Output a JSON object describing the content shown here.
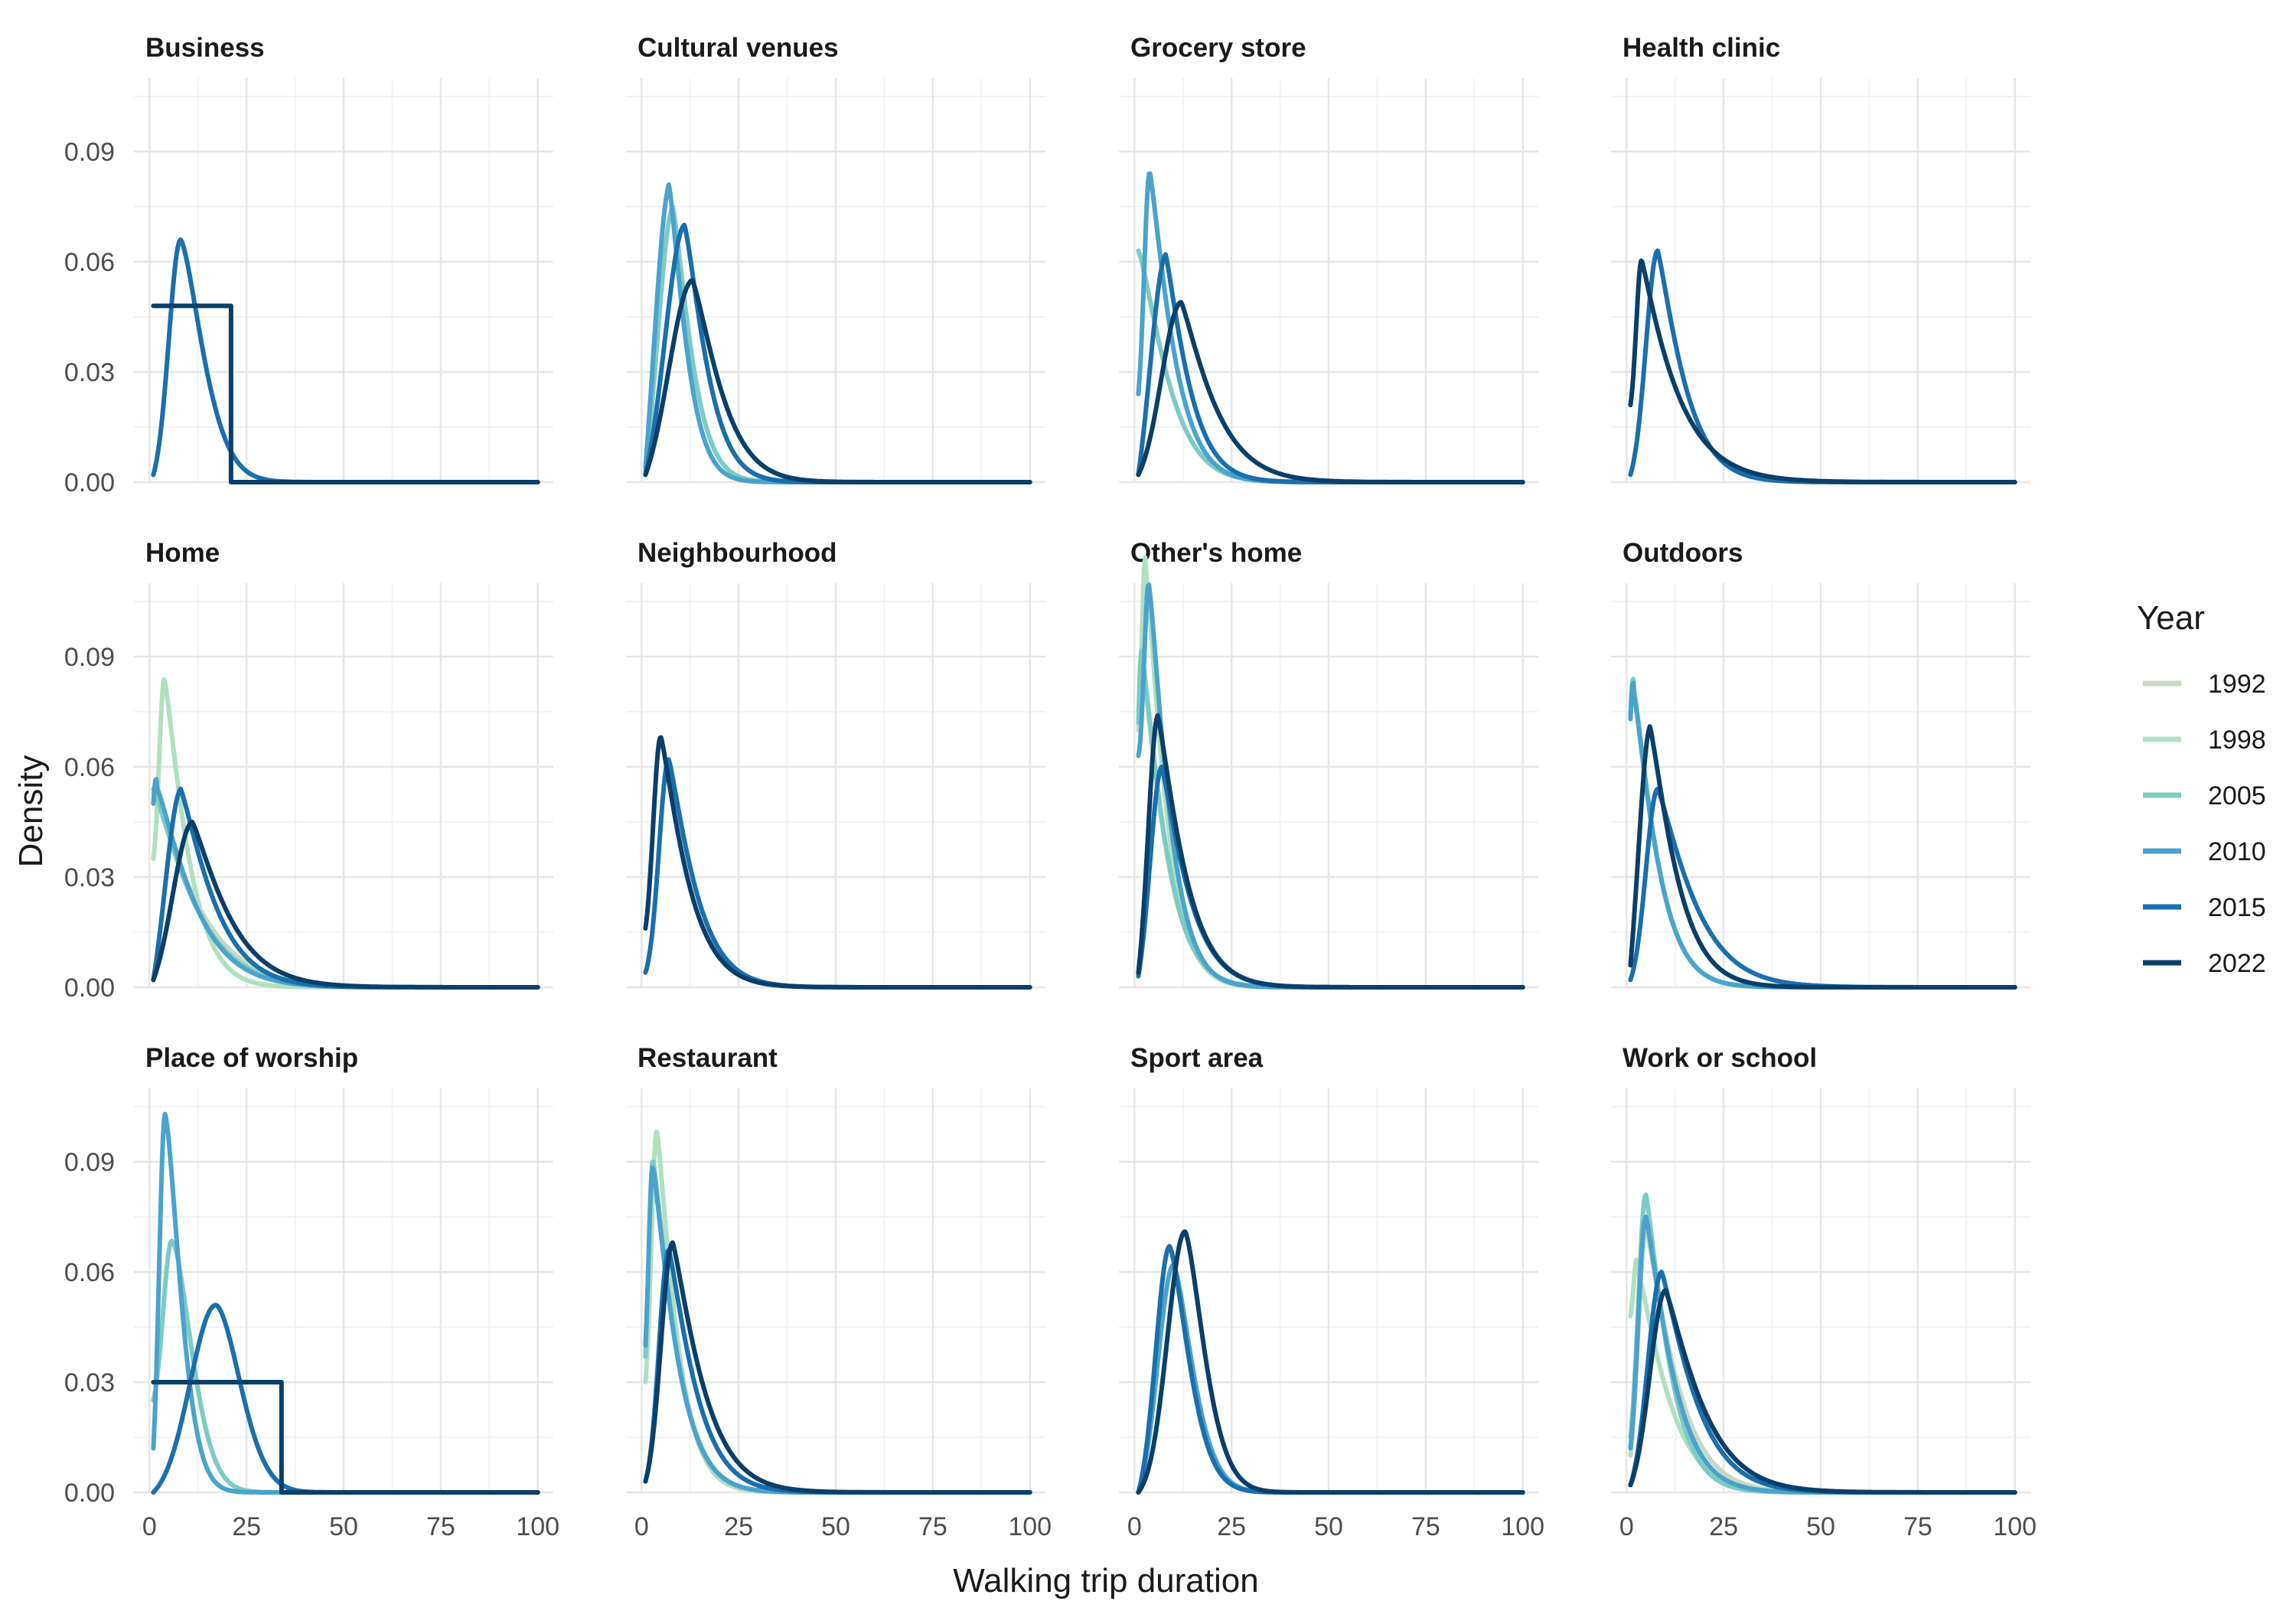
{
  "chart_data": {
    "type": "line",
    "xlabel": "Walking trip duration",
    "ylabel": "Density",
    "xlim": [
      0,
      100
    ],
    "ylim": [
      0,
      0.11
    ],
    "x_ticks": [
      0,
      25,
      50,
      75,
      100
    ],
    "y_ticks": [
      0.0,
      0.03,
      0.06,
      0.09
    ],
    "x_tick_labels": [
      "0",
      "25",
      "50",
      "75",
      "100"
    ],
    "y_tick_labels": [
      "0.00",
      "0.03",
      "0.06",
      "0.09"
    ],
    "grid": true,
    "legend": {
      "title": "Year",
      "position": "right",
      "entries": [
        {
          "name": "1992",
          "color": "#c5d9c0"
        },
        {
          "name": "1998",
          "color": "#b0e0c0"
        },
        {
          "name": "2005",
          "color": "#7ccbc4"
        },
        {
          "name": "2010",
          "color": "#4aa3cc"
        },
        {
          "name": "2015",
          "color": "#1a6fac"
        },
        {
          "name": "2022",
          "color": "#0b3f6a"
        }
      ]
    },
    "panels": [
      {
        "title": "Business",
        "series": [
          {
            "name": "2015",
            "kind": "peak",
            "peak_x": 8,
            "peak_y": 0.066,
            "left_width": 3,
            "right_scale": 8,
            "shape": 1.5,
            "start_x": 1,
            "start_y": 0.002
          },
          {
            "name": "2022",
            "kind": "uniform",
            "from": 1,
            "to": 21,
            "value": 0.048
          }
        ]
      },
      {
        "title": "Cultural venues",
        "series": [
          {
            "name": "2005",
            "kind": "peak",
            "peak_x": 8,
            "peak_y": 0.075,
            "left_width": 4,
            "right_scale": 6,
            "shape": 1.3,
            "start_x": 1,
            "start_y": 0.003
          },
          {
            "name": "2010",
            "kind": "peak",
            "peak_x": 7,
            "peak_y": 0.081,
            "left_width": 4,
            "right_scale": 5.5,
            "shape": 1.3,
            "start_x": 1,
            "start_y": 0.004
          },
          {
            "name": "2015",
            "kind": "peak",
            "peak_x": 11,
            "peak_y": 0.07,
            "left_width": 5,
            "right_scale": 7,
            "shape": 1.3,
            "start_x": 1,
            "start_y": 0.002
          },
          {
            "name": "2022",
            "kind": "peak",
            "peak_x": 13,
            "peak_y": 0.055,
            "left_width": 6,
            "right_scale": 9,
            "shape": 1.3,
            "start_x": 1,
            "start_y": 0.002
          }
        ]
      },
      {
        "title": "Grocery store",
        "series": [
          {
            "name": "2005",
            "kind": "peak",
            "peak_x": 1,
            "peak_y": 0.063,
            "left_width": 1,
            "right_scale": 9,
            "shape": 1.3,
            "start_x": 1,
            "start_y": 0.063
          },
          {
            "name": "2010",
            "kind": "peak",
            "peak_x": 4,
            "peak_y": 0.084,
            "left_width": 1.5,
            "right_scale": 7,
            "shape": 1.2,
            "start_x": 1,
            "start_y": 0.024
          },
          {
            "name": "2015",
            "kind": "peak",
            "peak_x": 8,
            "peak_y": 0.062,
            "left_width": 4,
            "right_scale": 7,
            "shape": 1.2,
            "start_x": 1,
            "start_y": 0.002
          },
          {
            "name": "2022",
            "kind": "peak",
            "peak_x": 12,
            "peak_y": 0.049,
            "left_width": 5,
            "right_scale": 10,
            "shape": 1.2,
            "start_x": 1,
            "start_y": 0.002
          }
        ]
      },
      {
        "title": "Health clinic",
        "series": [
          {
            "name": "2015",
            "kind": "peak",
            "peak_x": 8,
            "peak_y": 0.063,
            "left_width": 3,
            "right_scale": 8,
            "shape": 1.2,
            "start_x": 1,
            "start_y": 0.002
          },
          {
            "name": "2022",
            "kind": "peak",
            "peak_x": 4,
            "peak_y": 0.06,
            "left_width": 1.5,
            "right_scale": 10,
            "shape": 1.1,
            "start_x": 1,
            "start_y": 0.021
          }
        ]
      },
      {
        "title": "Home",
        "series": [
          {
            "name": "1992",
            "kind": "peak",
            "peak_x": 1,
            "peak_y": 0.053,
            "left_width": 1,
            "right_scale": 13,
            "shape": 1.2,
            "start_x": 1,
            "start_y": 0.053
          },
          {
            "name": "1998",
            "kind": "peak",
            "peak_x": 4,
            "peak_y": 0.083,
            "left_width": 1.5,
            "right_scale": 7,
            "shape": 1.2,
            "start_x": 1,
            "start_y": 0.035
          },
          {
            "name": "2005",
            "kind": "peak",
            "peak_x": 1,
            "peak_y": 0.054,
            "left_width": 1,
            "right_scale": 12,
            "shape": 1.2,
            "start_x": 1,
            "start_y": 0.054
          },
          {
            "name": "2010",
            "kind": "peak",
            "peak_x": 2,
            "peak_y": 0.054,
            "left_width": 1,
            "right_scale": 11,
            "shape": 1.2,
            "start_x": 1,
            "start_y": 0.05
          },
          {
            "name": "2015",
            "kind": "peak",
            "peak_x": 8,
            "peak_y": 0.054,
            "left_width": 4,
            "right_scale": 10,
            "shape": 1.2,
            "start_x": 1,
            "start_y": 0.002
          },
          {
            "name": "2022",
            "kind": "peak",
            "peak_x": 11,
            "peak_y": 0.045,
            "left_width": 5,
            "right_scale": 11,
            "shape": 1.2,
            "start_x": 1,
            "start_y": 0.002
          }
        ]
      },
      {
        "title": "Neighbourhood",
        "series": [
          {
            "name": "2015",
            "kind": "peak",
            "peak_x": 7,
            "peak_y": 0.062,
            "left_width": 2.5,
            "right_scale": 8,
            "shape": 1.2,
            "start_x": 1,
            "start_y": 0.004
          },
          {
            "name": "2022",
            "kind": "peak",
            "peak_x": 5,
            "peak_y": 0.068,
            "left_width": 2,
            "right_scale": 8,
            "shape": 1.2,
            "start_x": 1,
            "start_y": 0.016
          }
        ]
      },
      {
        "title": "Other's home",
        "series": [
          {
            "name": "1992",
            "kind": "peak",
            "peak_x": 2,
            "peak_y": 0.088,
            "left_width": 1,
            "right_scale": 7,
            "shape": 1.2,
            "start_x": 1,
            "start_y": 0.07
          },
          {
            "name": "1998",
            "kind": "peak",
            "peak_x": 3,
            "peak_y": 0.113,
            "left_width": 1,
            "right_scale": 6,
            "shape": 1.2,
            "start_x": 1,
            "start_y": 0.075
          },
          {
            "name": "2005",
            "kind": "peak",
            "peak_x": 2,
            "peak_y": 0.09,
            "left_width": 1,
            "right_scale": 7,
            "shape": 1.2,
            "start_x": 1,
            "start_y": 0.072
          },
          {
            "name": "2010",
            "kind": "peak",
            "peak_x": 4,
            "peak_y": 0.107,
            "left_width": 1.5,
            "right_scale": 6,
            "shape": 1.2,
            "start_x": 1,
            "start_y": 0.063
          },
          {
            "name": "2015",
            "kind": "peak",
            "peak_x": 7,
            "peak_y": 0.06,
            "left_width": 3,
            "right_scale": 8,
            "shape": 1.2,
            "start_x": 1,
            "start_y": 0.003
          },
          {
            "name": "2022",
            "kind": "peak",
            "peak_x": 6,
            "peak_y": 0.074,
            "left_width": 2.5,
            "right_scale": 8,
            "shape": 1.2,
            "start_x": 1,
            "start_y": 0.004
          }
        ]
      },
      {
        "title": "Outdoors",
        "series": [
          {
            "name": "2005",
            "kind": "peak",
            "peak_x": 2,
            "peak_y": 0.08,
            "left_width": 1,
            "right_scale": 7,
            "shape": 1.2,
            "start_x": 1,
            "start_y": 0.074
          },
          {
            "name": "2010",
            "kind": "peak",
            "peak_x": 2,
            "peak_y": 0.079,
            "left_width": 1,
            "right_scale": 7,
            "shape": 1.2,
            "start_x": 1,
            "start_y": 0.073
          },
          {
            "name": "2015",
            "kind": "peak",
            "peak_x": 8,
            "peak_y": 0.054,
            "left_width": 3,
            "right_scale": 11,
            "shape": 1.2,
            "start_x": 1,
            "start_y": 0.002
          },
          {
            "name": "2022",
            "kind": "peak",
            "peak_x": 6,
            "peak_y": 0.071,
            "left_width": 3,
            "right_scale": 8,
            "shape": 1.2,
            "start_x": 1,
            "start_y": 0.006
          }
        ]
      },
      {
        "title": "Place of worship",
        "series": [
          {
            "name": "2005",
            "kind": "peak",
            "peak_x": 6,
            "peak_y": 0.068,
            "left_width": 2.5,
            "right_scale": 7,
            "shape": 1.6,
            "start_x": 1,
            "start_y": 0.025
          },
          {
            "name": "2010",
            "kind": "peak",
            "peak_x": 4,
            "peak_y": 0.103,
            "left_width": 1.5,
            "right_scale": 5.5,
            "shape": 1.5,
            "start_x": 1,
            "start_y": 0.012
          },
          {
            "name": "2015",
            "kind": "peak",
            "peak_x": 17,
            "peak_y": 0.051,
            "left_width": 6.5,
            "right_scale": 9,
            "shape": 1.8,
            "start_x": 1,
            "start_y": 0.0
          },
          {
            "name": "2022",
            "kind": "uniform",
            "from": 1,
            "to": 34,
            "value": 0.03
          }
        ]
      },
      {
        "title": "Restaurant",
        "series": [
          {
            "name": "1998",
            "kind": "peak",
            "peak_x": 4,
            "peak_y": 0.098,
            "left_width": 1.5,
            "right_scale": 6,
            "shape": 1.2,
            "start_x": 1,
            "start_y": 0.03
          },
          {
            "name": "2005",
            "kind": "peak",
            "peak_x": 3,
            "peak_y": 0.09,
            "left_width": 1.2,
            "right_scale": 7,
            "shape": 1.2,
            "start_x": 1,
            "start_y": 0.037
          },
          {
            "name": "2010",
            "kind": "peak",
            "peak_x": 3,
            "peak_y": 0.088,
            "left_width": 1.2,
            "right_scale": 7,
            "shape": 1.2,
            "start_x": 1,
            "start_y": 0.04
          },
          {
            "name": "2015",
            "kind": "peak",
            "peak_x": 7,
            "peak_y": 0.066,
            "left_width": 2.5,
            "right_scale": 8,
            "shape": 1.2,
            "start_x": 1,
            "start_y": 0.003
          },
          {
            "name": "2022",
            "kind": "peak",
            "peak_x": 8,
            "peak_y": 0.068,
            "left_width": 3,
            "right_scale": 9,
            "shape": 1.2,
            "start_x": 1,
            "start_y": 0.003
          }
        ]
      },
      {
        "title": "Sport area",
        "series": [
          {
            "name": "2010",
            "kind": "peak",
            "peak_x": 10,
            "peak_y": 0.062,
            "left_width": 4,
            "right_scale": 7,
            "shape": 1.5,
            "start_x": 1,
            "start_y": 0.0
          },
          {
            "name": "2015",
            "kind": "peak",
            "peak_x": 9,
            "peak_y": 0.067,
            "left_width": 3.5,
            "right_scale": 7,
            "shape": 1.5,
            "start_x": 1,
            "start_y": 0.0
          },
          {
            "name": "2022",
            "kind": "peak",
            "peak_x": 13,
            "peak_y": 0.071,
            "left_width": 4.5,
            "right_scale": 7,
            "shape": 1.5,
            "start_x": 1,
            "start_y": 0.0
          }
        ]
      },
      {
        "title": "Work or school",
        "series": [
          {
            "name": "1992",
            "kind": "peak",
            "peak_x": 5,
            "peak_y": 0.072,
            "left_width": 2,
            "right_scale": 9,
            "shape": 1.2,
            "start_x": 1,
            "start_y": 0.01
          },
          {
            "name": "1998",
            "kind": "peak",
            "peak_x": 3,
            "peak_y": 0.06,
            "left_width": 1.2,
            "right_scale": 9,
            "shape": 1.2,
            "start_x": 1,
            "start_y": 0.048
          },
          {
            "name": "2005",
            "kind": "peak",
            "peak_x": 5,
            "peak_y": 0.081,
            "left_width": 2,
            "right_scale": 7,
            "shape": 1.2,
            "start_x": 1,
            "start_y": 0.015
          },
          {
            "name": "2010",
            "kind": "peak",
            "peak_x": 5,
            "peak_y": 0.075,
            "left_width": 2,
            "right_scale": 8,
            "shape": 1.2,
            "start_x": 1,
            "start_y": 0.012
          },
          {
            "name": "2015",
            "kind": "peak",
            "peak_x": 9,
            "peak_y": 0.06,
            "left_width": 3.5,
            "right_scale": 10,
            "shape": 1.2,
            "start_x": 1,
            "start_y": 0.002
          },
          {
            "name": "2022",
            "kind": "peak",
            "peak_x": 10,
            "peak_y": 0.055,
            "left_width": 4,
            "right_scale": 11,
            "shape": 1.2,
            "start_x": 1,
            "start_y": 0.002
          }
        ]
      }
    ]
  }
}
